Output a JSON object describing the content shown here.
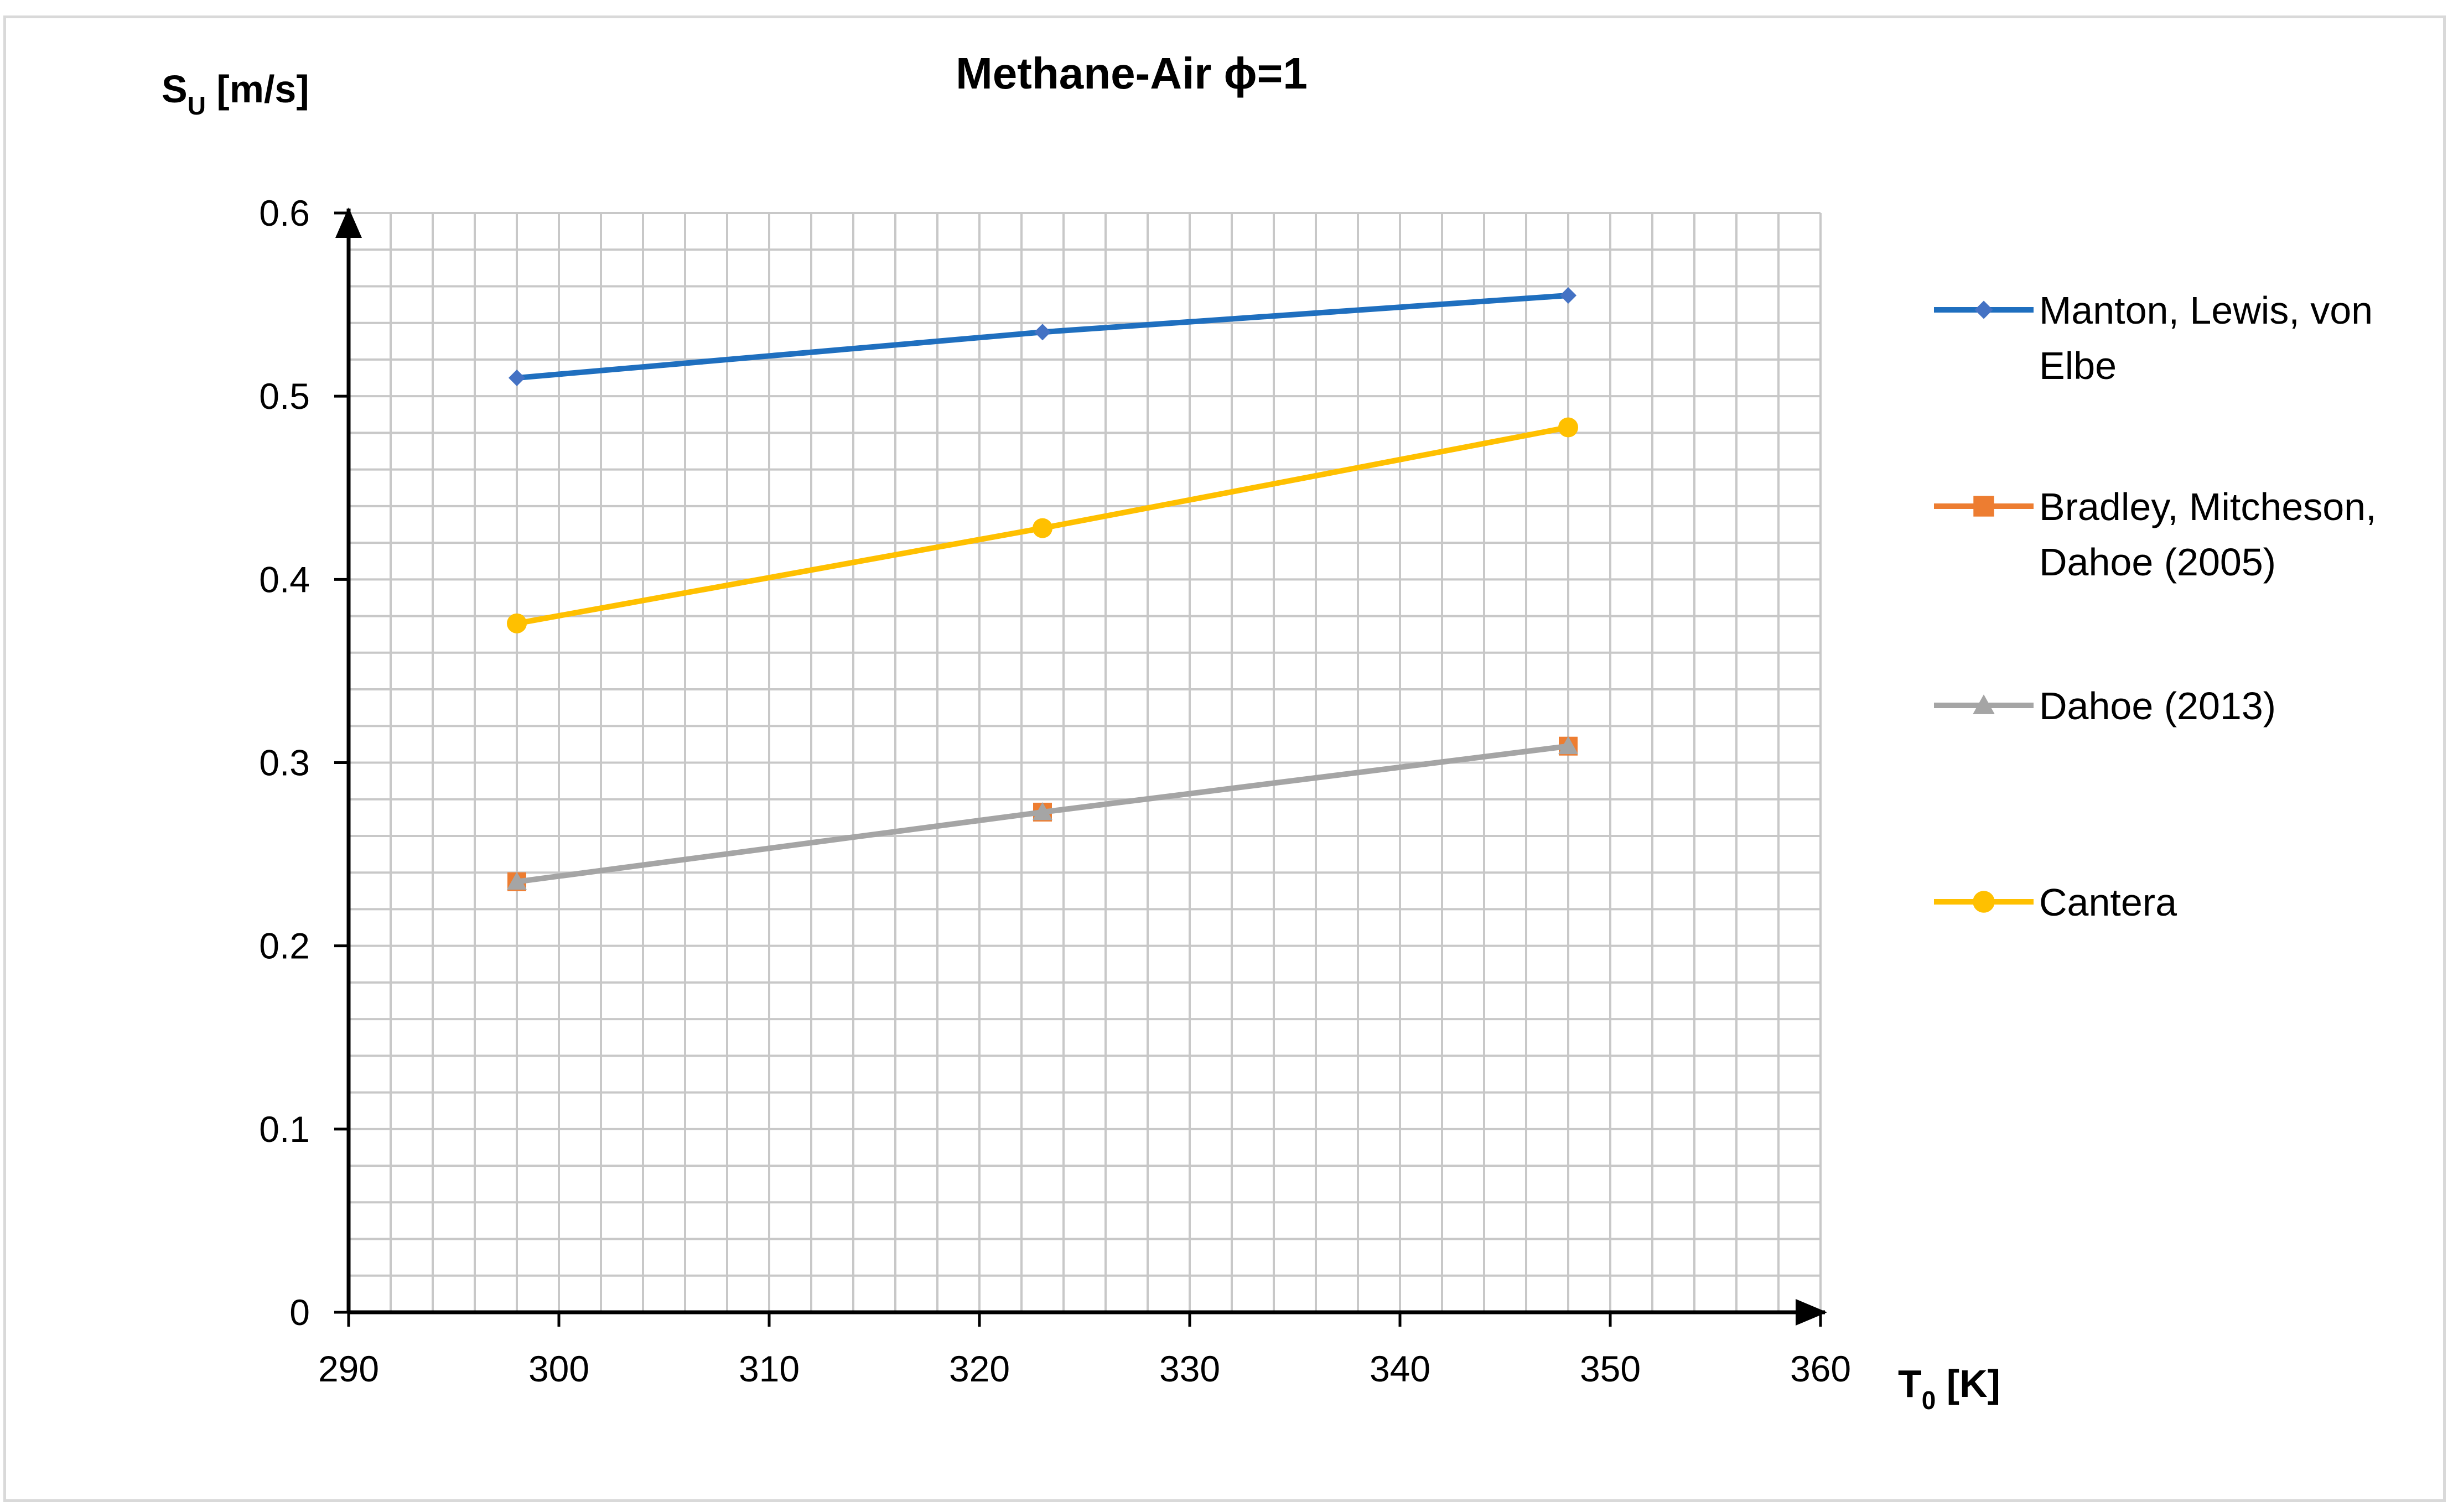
{
  "chart_data": {
    "type": "line",
    "title": "Methane-Air ϕ=1",
    "ylabel": {
      "main": "S",
      "sub": "U",
      "unit": " [m/s]"
    },
    "xlabel": {
      "main": "T",
      "sub": "0",
      "unit": " [K]"
    },
    "xlim": [
      290,
      360
    ],
    "ylim": [
      0,
      0.6
    ],
    "x_major_step": 10,
    "y_major_step": 0.1,
    "x_minor_step": 2,
    "y_minor_step": 0.02,
    "x_tick_labels": [
      "290",
      "300",
      "310",
      "320",
      "330",
      "340",
      "350",
      "360"
    ],
    "y_tick_labels": [
      "0",
      "0.1",
      "0.2",
      "0.3",
      "0.4",
      "0.5",
      "0.6"
    ],
    "grid": true,
    "legend_position": "right",
    "series": [
      {
        "name": "Manton, Lewis, von Elbe",
        "legend_lines": [
          "Manton, Lewis, von",
          "Elbe"
        ],
        "color": "#1f6fbf",
        "marker_color": "#4472c4",
        "marker": "diamond",
        "x": [
          298,
          323,
          348
        ],
        "y": [
          0.51,
          0.535,
          0.555
        ]
      },
      {
        "name": "Bradley, Mitcheson, Dahoe (2005)",
        "legend_lines": [
          "Bradley, Mitcheson,",
          "Dahoe (2005)"
        ],
        "color": "#ed7d31",
        "marker_color": "#ed7d31",
        "marker": "square",
        "line": false,
        "x": [
          298,
          323,
          348
        ],
        "y": [
          0.235,
          0.273,
          0.309
        ]
      },
      {
        "name": "Dahoe (2013)",
        "legend_lines": [
          "Dahoe (2013)"
        ],
        "color": "#a5a5a5",
        "marker_color": "#a5a5a5",
        "marker": "triangle",
        "x": [
          298,
          323,
          348
        ],
        "y": [
          0.235,
          0.273,
          0.309
        ]
      },
      {
        "name": "Cantera",
        "legend_lines": [
          "Cantera"
        ],
        "color": "#ffc000",
        "marker_color": "#ffc000",
        "marker": "circle",
        "x": [
          298,
          323,
          348
        ],
        "y": [
          0.376,
          0.428,
          0.483
        ]
      }
    ]
  }
}
